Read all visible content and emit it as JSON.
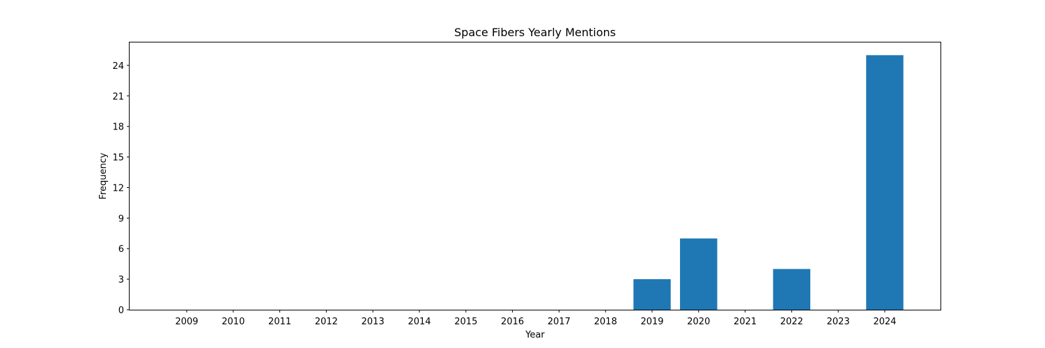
{
  "chart_data": {
    "type": "bar",
    "title": "Space Fibers Yearly Mentions",
    "xlabel": "Year",
    "ylabel": "Frequency",
    "categories": [
      "2009",
      "2010",
      "2011",
      "2012",
      "2013",
      "2014",
      "2015",
      "2016",
      "2017",
      "2018",
      "2019",
      "2020",
      "2021",
      "2022",
      "2023",
      "2024"
    ],
    "values": [
      0,
      0,
      0,
      0,
      0,
      0,
      0,
      0,
      0,
      0,
      3,
      7,
      0,
      4,
      0,
      25
    ],
    "ylim": [
      0,
      26.25
    ],
    "yticks": [
      0,
      3,
      6,
      9,
      12,
      15,
      18,
      21,
      24
    ],
    "grid": false,
    "bar_color": "#1f77b4"
  }
}
